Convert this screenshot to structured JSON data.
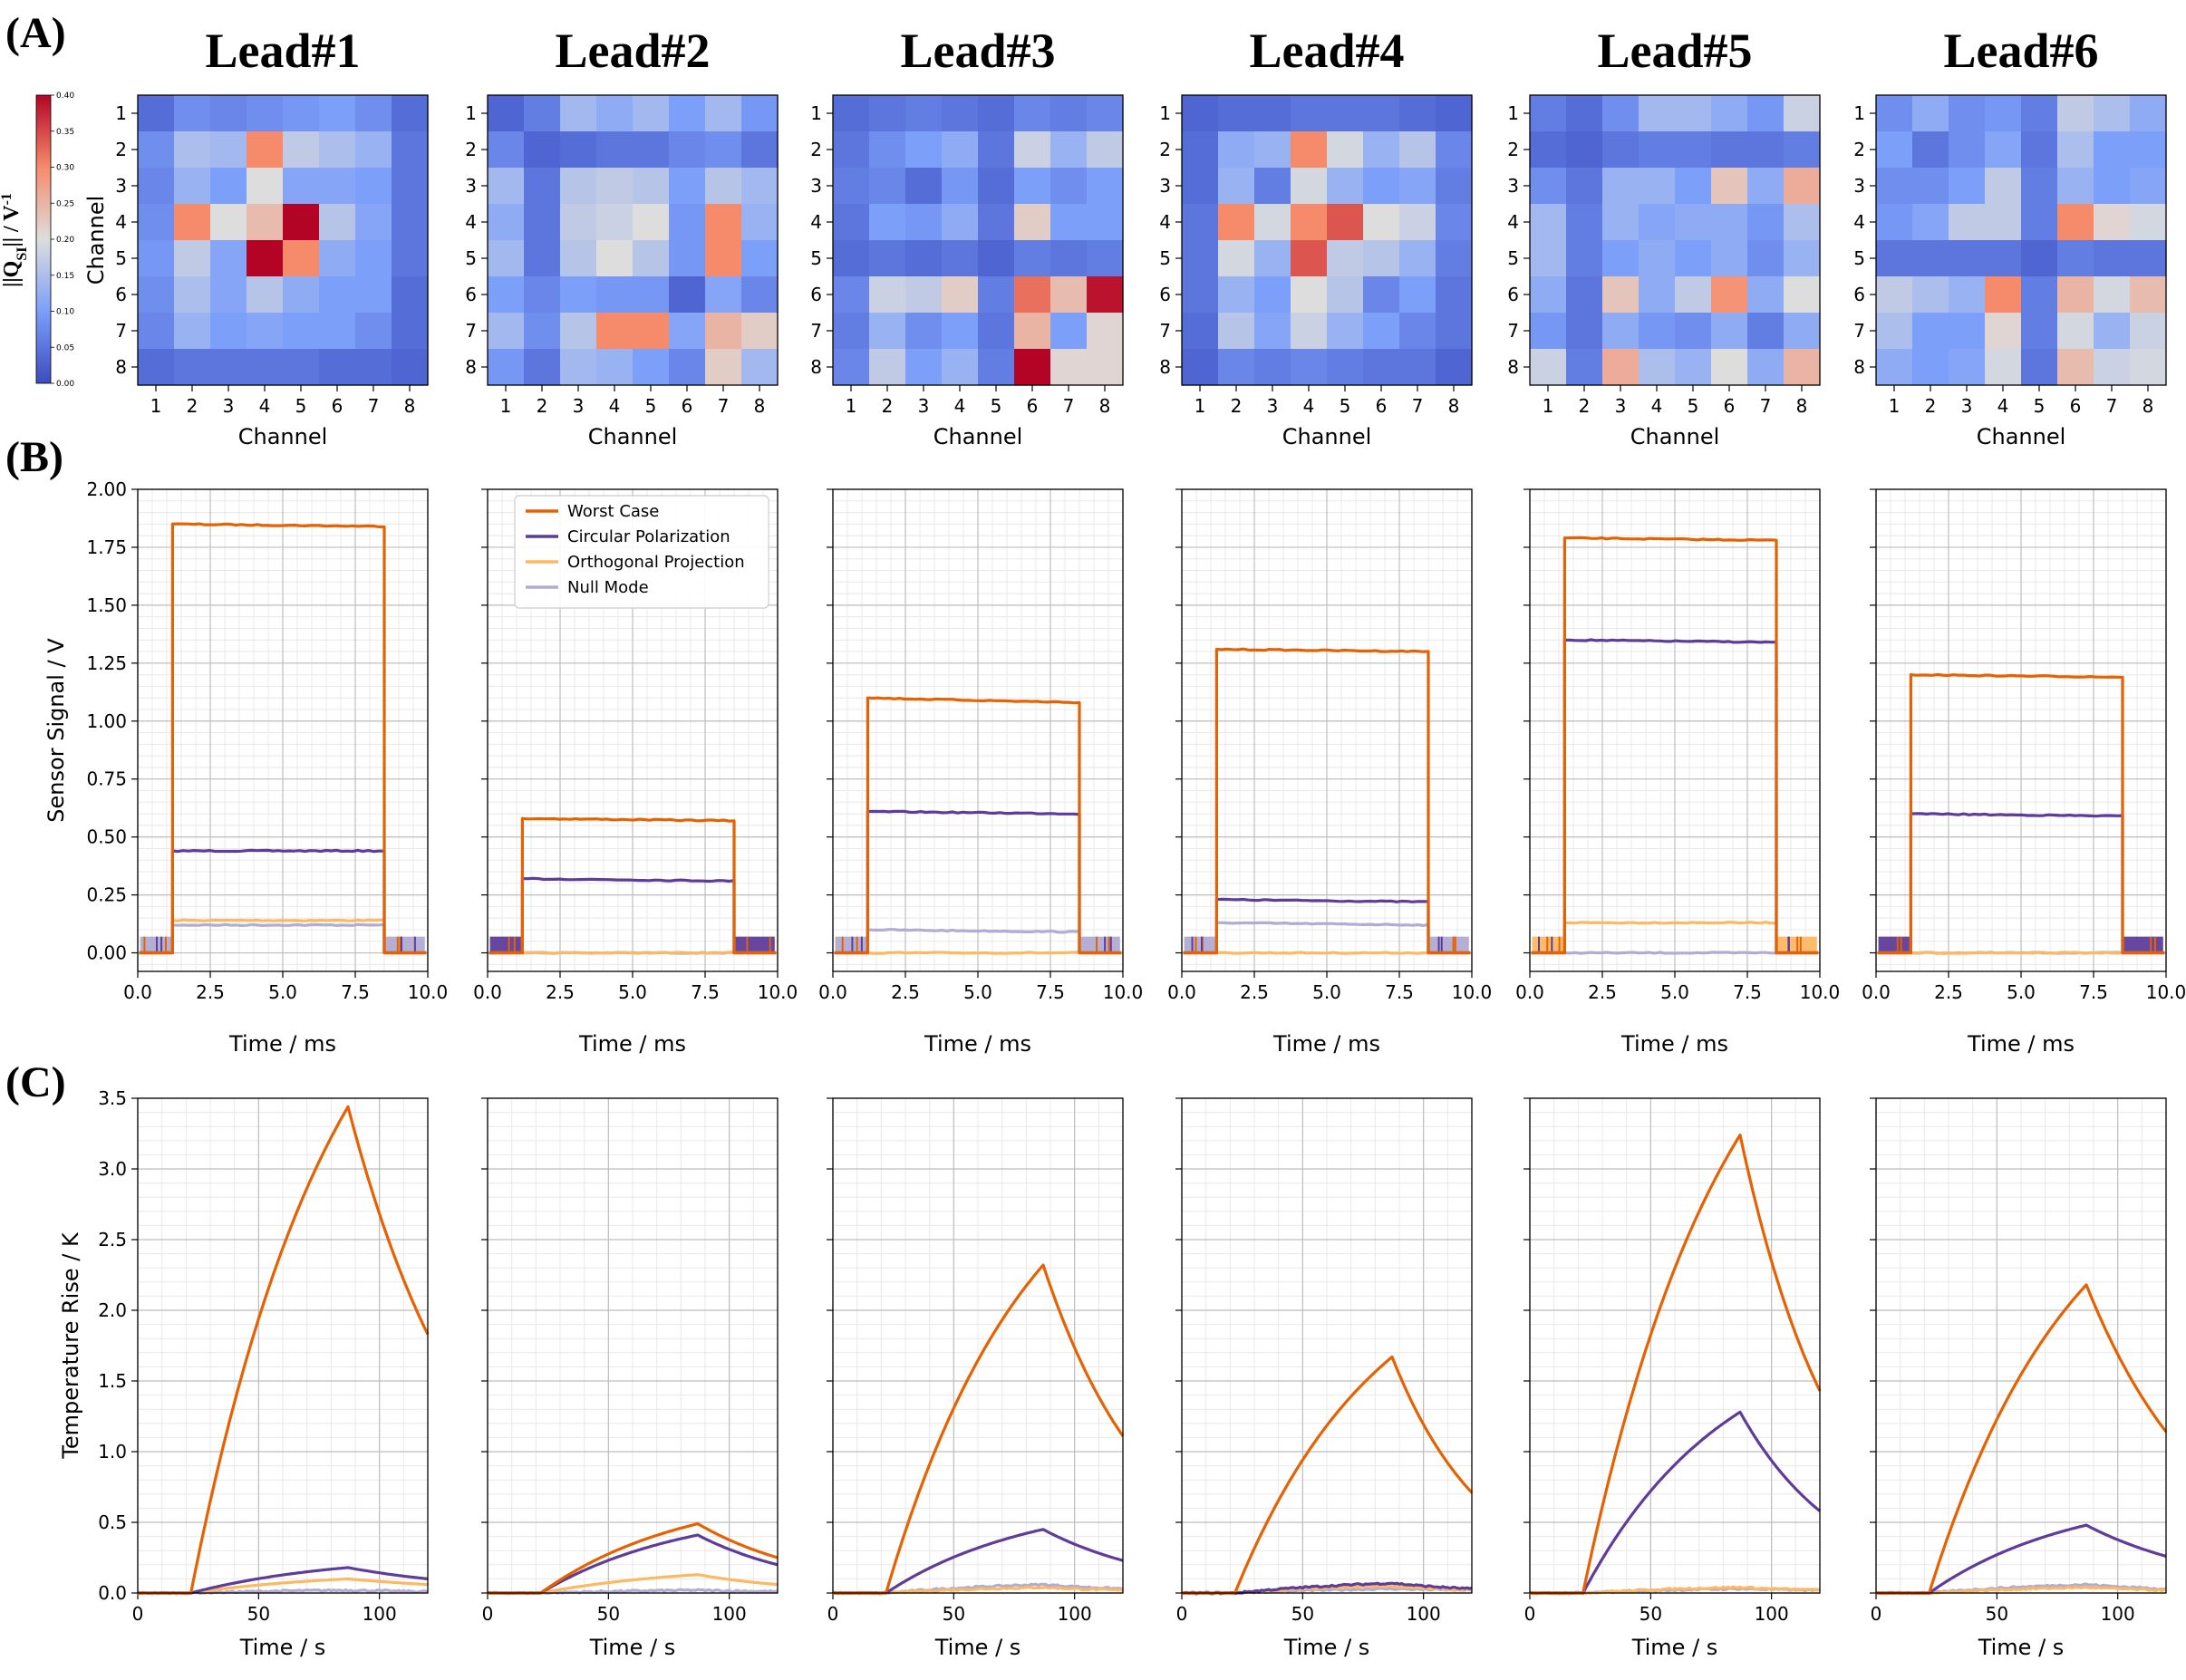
{
  "panel_letters": [
    "(A)",
    "(B)",
    "(C)"
  ],
  "colorbar": {
    "label_main": "||Q",
    "label_sub": "SI",
    "label_rest": "|| / V",
    "label_sup": "-1",
    "ticks": [
      "0.00",
      "0.05",
      "0.10",
      "0.15",
      "0.20",
      "0.25",
      "0.30",
      "0.35",
      "0.40"
    ],
    "range": [
      0,
      0.4
    ],
    "colormap": "coolwarm"
  },
  "series_colors": {
    "Worst Case": "#e66101",
    "Circular Polarization": "#5e3c99",
    "Orthogonal Projection": "#fdb863",
    "Null Mode": "#b2abd2"
  },
  "legend": [
    "Worst Case",
    "Circular Polarization",
    "Orthogonal Projection",
    "Null Mode"
  ],
  "chart_data": [
    {
      "panel": "A",
      "type": "heatmap",
      "xlabel": "Channel",
      "ylabel": "Channel",
      "x_ticks": [
        "1",
        "2",
        "3",
        "4",
        "5",
        "6",
        "7",
        "8"
      ],
      "y_ticks": [
        "1",
        "2",
        "3",
        "4",
        "5",
        "6",
        "7",
        "8"
      ],
      "clim": [
        0,
        0.4
      ],
      "leads": [
        {
          "title": "Lead#1",
          "matrix": [
            [
              0.04,
              0.08,
              0.07,
              0.08,
              0.09,
              0.1,
              0.08,
              0.04
            ],
            [
              0.08,
              0.15,
              0.14,
              0.3,
              0.17,
              0.15,
              0.13,
              0.05
            ],
            [
              0.07,
              0.13,
              0.1,
              0.2,
              0.11,
              0.11,
              0.1,
              0.05
            ],
            [
              0.08,
              0.3,
              0.2,
              0.24,
              0.4,
              0.16,
              0.11,
              0.05
            ],
            [
              0.09,
              0.17,
              0.11,
              0.4,
              0.3,
              0.12,
              0.1,
              0.05
            ],
            [
              0.08,
              0.15,
              0.11,
              0.16,
              0.12,
              0.1,
              0.1,
              0.04
            ],
            [
              0.07,
              0.13,
              0.1,
              0.11,
              0.1,
              0.1,
              0.08,
              0.04
            ],
            [
              0.04,
              0.05,
              0.05,
              0.05,
              0.05,
              0.04,
              0.04,
              0.03
            ]
          ]
        },
        {
          "title": "Lead#2",
          "matrix": [
            [
              0.03,
              0.06,
              0.14,
              0.12,
              0.14,
              0.1,
              0.14,
              0.09
            ],
            [
              0.07,
              0.03,
              0.04,
              0.05,
              0.05,
              0.07,
              0.08,
              0.05
            ],
            [
              0.14,
              0.05,
              0.16,
              0.17,
              0.16,
              0.1,
              0.16,
              0.14
            ],
            [
              0.12,
              0.05,
              0.17,
              0.18,
              0.2,
              0.09,
              0.3,
              0.13
            ],
            [
              0.14,
              0.05,
              0.16,
              0.2,
              0.16,
              0.09,
              0.3,
              0.1
            ],
            [
              0.1,
              0.07,
              0.1,
              0.09,
              0.09,
              0.03,
              0.11,
              0.07
            ],
            [
              0.14,
              0.08,
              0.16,
              0.3,
              0.3,
              0.11,
              0.25,
              0.22
            ],
            [
              0.09,
              0.05,
              0.14,
              0.13,
              0.1,
              0.07,
              0.22,
              0.14
            ]
          ]
        },
        {
          "title": "Lead#3",
          "matrix": [
            [
              0.04,
              0.05,
              0.06,
              0.05,
              0.04,
              0.07,
              0.06,
              0.07
            ],
            [
              0.05,
              0.08,
              0.1,
              0.12,
              0.05,
              0.18,
              0.13,
              0.17
            ],
            [
              0.06,
              0.07,
              0.04,
              0.09,
              0.04,
              0.1,
              0.08,
              0.1
            ],
            [
              0.05,
              0.1,
              0.09,
              0.12,
              0.05,
              0.22,
              0.1,
              0.1
            ],
            [
              0.04,
              0.05,
              0.04,
              0.05,
              0.03,
              0.06,
              0.05,
              0.06
            ],
            [
              0.07,
              0.18,
              0.17,
              0.22,
              0.06,
              0.32,
              0.24,
              0.39
            ],
            [
              0.06,
              0.13,
              0.08,
              0.1,
              0.05,
              0.25,
              0.1,
              0.21
            ],
            [
              0.07,
              0.17,
              0.1,
              0.13,
              0.06,
              0.4,
              0.21,
              0.21
            ]
          ]
        },
        {
          "title": "Lead#4",
          "matrix": [
            [
              0.03,
              0.04,
              0.04,
              0.05,
              0.05,
              0.05,
              0.04,
              0.03
            ],
            [
              0.04,
              0.12,
              0.13,
              0.3,
              0.19,
              0.13,
              0.16,
              0.07
            ],
            [
              0.04,
              0.13,
              0.06,
              0.19,
              0.13,
              0.1,
              0.11,
              0.06
            ],
            [
              0.05,
              0.3,
              0.19,
              0.3,
              0.34,
              0.2,
              0.18,
              0.07
            ],
            [
              0.05,
              0.19,
              0.13,
              0.34,
              0.17,
              0.16,
              0.13,
              0.06
            ],
            [
              0.05,
              0.13,
              0.1,
              0.2,
              0.16,
              0.07,
              0.1,
              0.05
            ],
            [
              0.04,
              0.16,
              0.11,
              0.18,
              0.13,
              0.1,
              0.07,
              0.05
            ],
            [
              0.03,
              0.07,
              0.06,
              0.07,
              0.06,
              0.05,
              0.05,
              0.03
            ]
          ]
        },
        {
          "title": "Lead#5",
          "matrix": [
            [
              0.06,
              0.04,
              0.08,
              0.14,
              0.14,
              0.12,
              0.09,
              0.18
            ],
            [
              0.04,
              0.03,
              0.05,
              0.06,
              0.06,
              0.05,
              0.05,
              0.06
            ],
            [
              0.08,
              0.05,
              0.13,
              0.13,
              0.1,
              0.23,
              0.12,
              0.26
            ],
            [
              0.14,
              0.06,
              0.13,
              0.11,
              0.12,
              0.12,
              0.09,
              0.15
            ],
            [
              0.14,
              0.06,
              0.1,
              0.12,
              0.1,
              0.12,
              0.08,
              0.13
            ],
            [
              0.12,
              0.05,
              0.23,
              0.12,
              0.17,
              0.29,
              0.12,
              0.2
            ],
            [
              0.09,
              0.05,
              0.12,
              0.09,
              0.08,
              0.12,
              0.06,
              0.12
            ],
            [
              0.18,
              0.06,
              0.26,
              0.15,
              0.13,
              0.2,
              0.12,
              0.25
            ]
          ]
        },
        {
          "title": "Lead#6",
          "matrix": [
            [
              0.08,
              0.12,
              0.08,
              0.09,
              0.06,
              0.17,
              0.15,
              0.12
            ],
            [
              0.1,
              0.05,
              0.08,
              0.11,
              0.05,
              0.15,
              0.1,
              0.1
            ],
            [
              0.08,
              0.08,
              0.1,
              0.17,
              0.06,
              0.13,
              0.1,
              0.11
            ],
            [
              0.09,
              0.11,
              0.17,
              0.17,
              0.06,
              0.3,
              0.21,
              0.19
            ],
            [
              0.05,
              0.05,
              0.05,
              0.05,
              0.03,
              0.06,
              0.05,
              0.05
            ],
            [
              0.17,
              0.15,
              0.13,
              0.3,
              0.06,
              0.25,
              0.19,
              0.24
            ],
            [
              0.15,
              0.1,
              0.1,
              0.21,
              0.06,
              0.19,
              0.13,
              0.18
            ],
            [
              0.12,
              0.1,
              0.11,
              0.19,
              0.05,
              0.24,
              0.18,
              0.19
            ]
          ]
        }
      ]
    },
    {
      "panel": "B",
      "type": "line",
      "xlabel": "Time / ms",
      "ylabel": "Sensor Signal / V",
      "xlim": [
        0,
        10
      ],
      "ylim": [
        -0.08,
        2.0
      ],
      "x_ticks": [
        "0.0",
        "2.5",
        "5.0",
        "7.5",
        "10.0"
      ],
      "y_ticks": [
        "0.00",
        "0.25",
        "0.50",
        "0.75",
        "1.00",
        "1.25",
        "1.50",
        "1.75",
        "2.00"
      ],
      "pulse_on_ms": 1.2,
      "pulse_off_ms": 8.5,
      "leads": [
        {
          "levels": {
            "Worst Case": [
              1.85,
              1.84
            ],
            "Circular Polarization": [
              0.44,
              0.44
            ],
            "Orthogonal Projection": [
              0.14,
              0.14
            ],
            "Null Mode": [
              0.12,
              0.12
            ]
          },
          "idle_noise": "Null Mode"
        },
        {
          "levels": {
            "Worst Case": [
              0.58,
              0.57
            ],
            "Circular Polarization": [
              0.32,
              0.31
            ],
            "Orthogonal Projection": [
              0.0,
              0.0
            ],
            "Null Mode": [
              0.0,
              0.0
            ]
          },
          "idle_noise": "Circular Polarization"
        },
        {
          "levels": {
            "Worst Case": [
              1.1,
              1.08
            ],
            "Circular Polarization": [
              0.61,
              0.6
            ],
            "Orthogonal Projection": [
              0.0,
              0.0
            ],
            "Null Mode": [
              0.1,
              0.09
            ]
          },
          "idle_noise": "Null Mode"
        },
        {
          "levels": {
            "Worst Case": [
              1.31,
              1.3
            ],
            "Circular Polarization": [
              0.23,
              0.22
            ],
            "Orthogonal Projection": [
              0.0,
              0.0
            ],
            "Null Mode": [
              0.13,
              0.12
            ]
          },
          "idle_noise": "Null Mode"
        },
        {
          "levels": {
            "Worst Case": [
              1.79,
              1.78
            ],
            "Circular Polarization": [
              1.35,
              1.34
            ],
            "Orthogonal Projection": [
              0.13,
              0.13
            ],
            "Null Mode": [
              0.0,
              0.0
            ]
          },
          "idle_noise": "Orthogonal Projection"
        },
        {
          "levels": {
            "Worst Case": [
              1.2,
              1.19
            ],
            "Circular Polarization": [
              0.6,
              0.59
            ],
            "Orthogonal Projection": [
              0.0,
              0.0
            ],
            "Null Mode": [
              0.0,
              0.0
            ]
          },
          "idle_noise": "Circular Polarization"
        }
      ]
    },
    {
      "panel": "C",
      "type": "line",
      "xlabel": "Time / s",
      "ylabel": "Temperature Rise / K",
      "xlim": [
        0,
        120
      ],
      "ylim": [
        0,
        3.5
      ],
      "x_ticks": [
        "0",
        "50",
        "100"
      ],
      "y_ticks": [
        "0.0",
        "0.5",
        "1.0",
        "1.5",
        "2.0",
        "2.5",
        "3.0",
        "3.5"
      ],
      "heating_on_s": 22,
      "heating_off_s": 87,
      "leads": [
        {
          "peaks": {
            "Worst Case": 3.44,
            "Circular Polarization": 0.18,
            "Orthogonal Projection": 0.1,
            "Null Mode": 0.02
          },
          "end": {
            "Worst Case": 1.83,
            "Circular Polarization": 0.1,
            "Orthogonal Projection": 0.06,
            "Null Mode": 0.01
          }
        },
        {
          "peaks": {
            "Worst Case": 0.49,
            "Circular Polarization": 0.41,
            "Orthogonal Projection": 0.13,
            "Null Mode": 0.02
          },
          "end": {
            "Worst Case": 0.25,
            "Circular Polarization": 0.2,
            "Orthogonal Projection": 0.06,
            "Null Mode": 0.01
          }
        },
        {
          "peaks": {
            "Worst Case": 2.32,
            "Circular Polarization": 0.45,
            "Orthogonal Projection": 0.04,
            "Null Mode": 0.06
          },
          "end": {
            "Worst Case": 1.11,
            "Circular Polarization": 0.23,
            "Orthogonal Projection": 0.02,
            "Null Mode": 0.03
          }
        },
        {
          "peaks": {
            "Worst Case": 1.67,
            "Circular Polarization": 0.07,
            "Orthogonal Projection": 0.05,
            "Null Mode": 0.03
          },
          "end": {
            "Worst Case": 0.71,
            "Circular Polarization": 0.03,
            "Orthogonal Projection": 0.02,
            "Null Mode": 0.02
          }
        },
        {
          "peaks": {
            "Worst Case": 3.24,
            "Circular Polarization": 1.28,
            "Orthogonal Projection": 0.04,
            "Null Mode": 0.03
          },
          "end": {
            "Worst Case": 1.43,
            "Circular Polarization": 0.58,
            "Orthogonal Projection": 0.02,
            "Null Mode": 0.02
          }
        },
        {
          "peaks": {
            "Worst Case": 2.18,
            "Circular Polarization": 0.48,
            "Orthogonal Projection": 0.04,
            "Null Mode": 0.06
          },
          "end": {
            "Worst Case": 1.14,
            "Circular Polarization": 0.26,
            "Orthogonal Projection": 0.02,
            "Null Mode": 0.03
          }
        }
      ]
    }
  ]
}
